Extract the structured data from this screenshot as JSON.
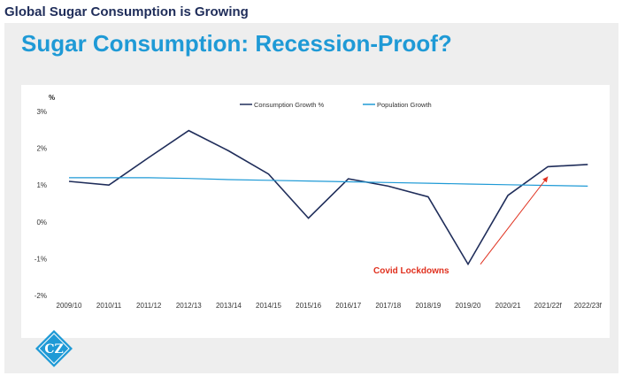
{
  "header": {
    "title": "Global Sugar Consumption is Growing"
  },
  "slide": {
    "title": "Sugar Consumption: Recession-Proof?"
  },
  "logo": {
    "text": "CZ"
  },
  "colors": {
    "consumption": "#1f2d5a",
    "population": "#1f9ad6",
    "annotation": "#e0301e",
    "title": "#1f9ad6",
    "header": "#1f2d5a"
  },
  "chart_data": {
    "type": "line",
    "ylabel": "%",
    "ylim": [
      -2,
      3
    ],
    "yticks": [
      3,
      2,
      1,
      0,
      -1,
      -2
    ],
    "ytick_labels": [
      "3%",
      "2%",
      "1%",
      "0%",
      "-1%",
      "-2%"
    ],
    "grid": false,
    "legend_position": "top",
    "categories": [
      "2009/10",
      "2010/11",
      "2011/12",
      "2012/13",
      "2013/14",
      "2014/15",
      "2015/16",
      "2016/17",
      "2017/18",
      "2018/19",
      "2019/20",
      "2020/21",
      "2021/22f",
      "2022/23f"
    ],
    "series": [
      {
        "name": "Consumption Growth %",
        "values": [
          1.1,
          1.0,
          1.75,
          2.48,
          1.93,
          1.3,
          0.1,
          1.17,
          0.97,
          0.68,
          -1.15,
          0.72,
          1.5,
          1.56
        ]
      },
      {
        "name": "Population Growth",
        "values": [
          1.2,
          1.2,
          1.2,
          1.18,
          1.15,
          1.13,
          1.11,
          1.09,
          1.07,
          1.05,
          1.03,
          1.01,
          0.99,
          0.97
        ]
      }
    ],
    "annotation": {
      "text": "Covid Lockdowns",
      "arrow_from_category": "2019/20",
      "arrow_to_category": "2021/22f"
    }
  }
}
